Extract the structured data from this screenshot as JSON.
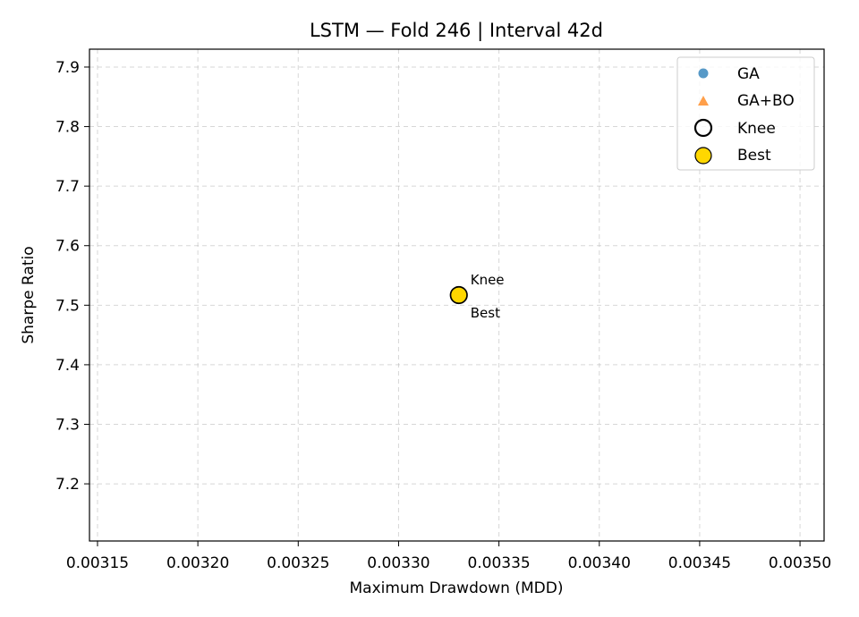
{
  "chart_data": {
    "type": "scatter",
    "title": "LSTM — Fold 246 | Interval 42d",
    "xlabel": "Maximum Drawdown (MDD)",
    "ylabel": "Sharpe Ratio",
    "xlim": [
      0.003146,
      0.003512
    ],
    "ylim": [
      7.104,
      7.93
    ],
    "xticks": [
      0.00315,
      0.0032,
      0.00325,
      0.0033,
      0.00335,
      0.0034,
      0.00345,
      0.0035
    ],
    "xtick_labels": [
      "0.00315",
      "0.00320",
      "0.00325",
      "0.00330",
      "0.00335",
      "0.00340",
      "0.00345",
      "0.00350"
    ],
    "yticks": [
      7.2,
      7.3,
      7.4,
      7.5,
      7.6,
      7.7,
      7.8,
      7.9
    ],
    "ytick_labels": [
      "7.2",
      "7.3",
      "7.4",
      "7.5",
      "7.6",
      "7.7",
      "7.8",
      "7.9"
    ],
    "grid": true,
    "legend_position": "top-right",
    "series": [
      {
        "name": "GA",
        "marker": "circle",
        "color": "#1f77b4",
        "points": []
      },
      {
        "name": "GA+BO",
        "marker": "triangle",
        "color": "#ff7f0e",
        "points": []
      },
      {
        "name": "Knee",
        "marker": "hollow-circle",
        "color": "#000000",
        "points": [
          {
            "x": 0.00333,
            "y": 7.517
          }
        ]
      },
      {
        "name": "Best",
        "marker": "filled-circle",
        "color": "#ffd700",
        "points": [
          {
            "x": 0.00333,
            "y": 7.517
          }
        ]
      }
    ],
    "annotations": [
      {
        "text": "Knee",
        "x": 0.00333,
        "y": 7.517,
        "placement": "upper-right"
      },
      {
        "text": "Best",
        "x": 0.00333,
        "y": 7.517,
        "placement": "lower-right"
      }
    ]
  }
}
